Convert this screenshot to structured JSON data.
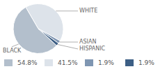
{
  "chart_data": {
    "type": "pie",
    "categories": [
      "BLACK",
      "WHITE",
      "ASIAN",
      "HISPANIC"
    ],
    "values": [
      54.8,
      41.5,
      1.9,
      1.9
    ],
    "value_labels": [
      "54.8%",
      "41.5%",
      "1.9%",
      "1.9%"
    ],
    "colors": [
      "#b3bfcc",
      "#dde3ea",
      "#7f96b2",
      "#3d5f85"
    ],
    "legend": "bottom"
  }
}
